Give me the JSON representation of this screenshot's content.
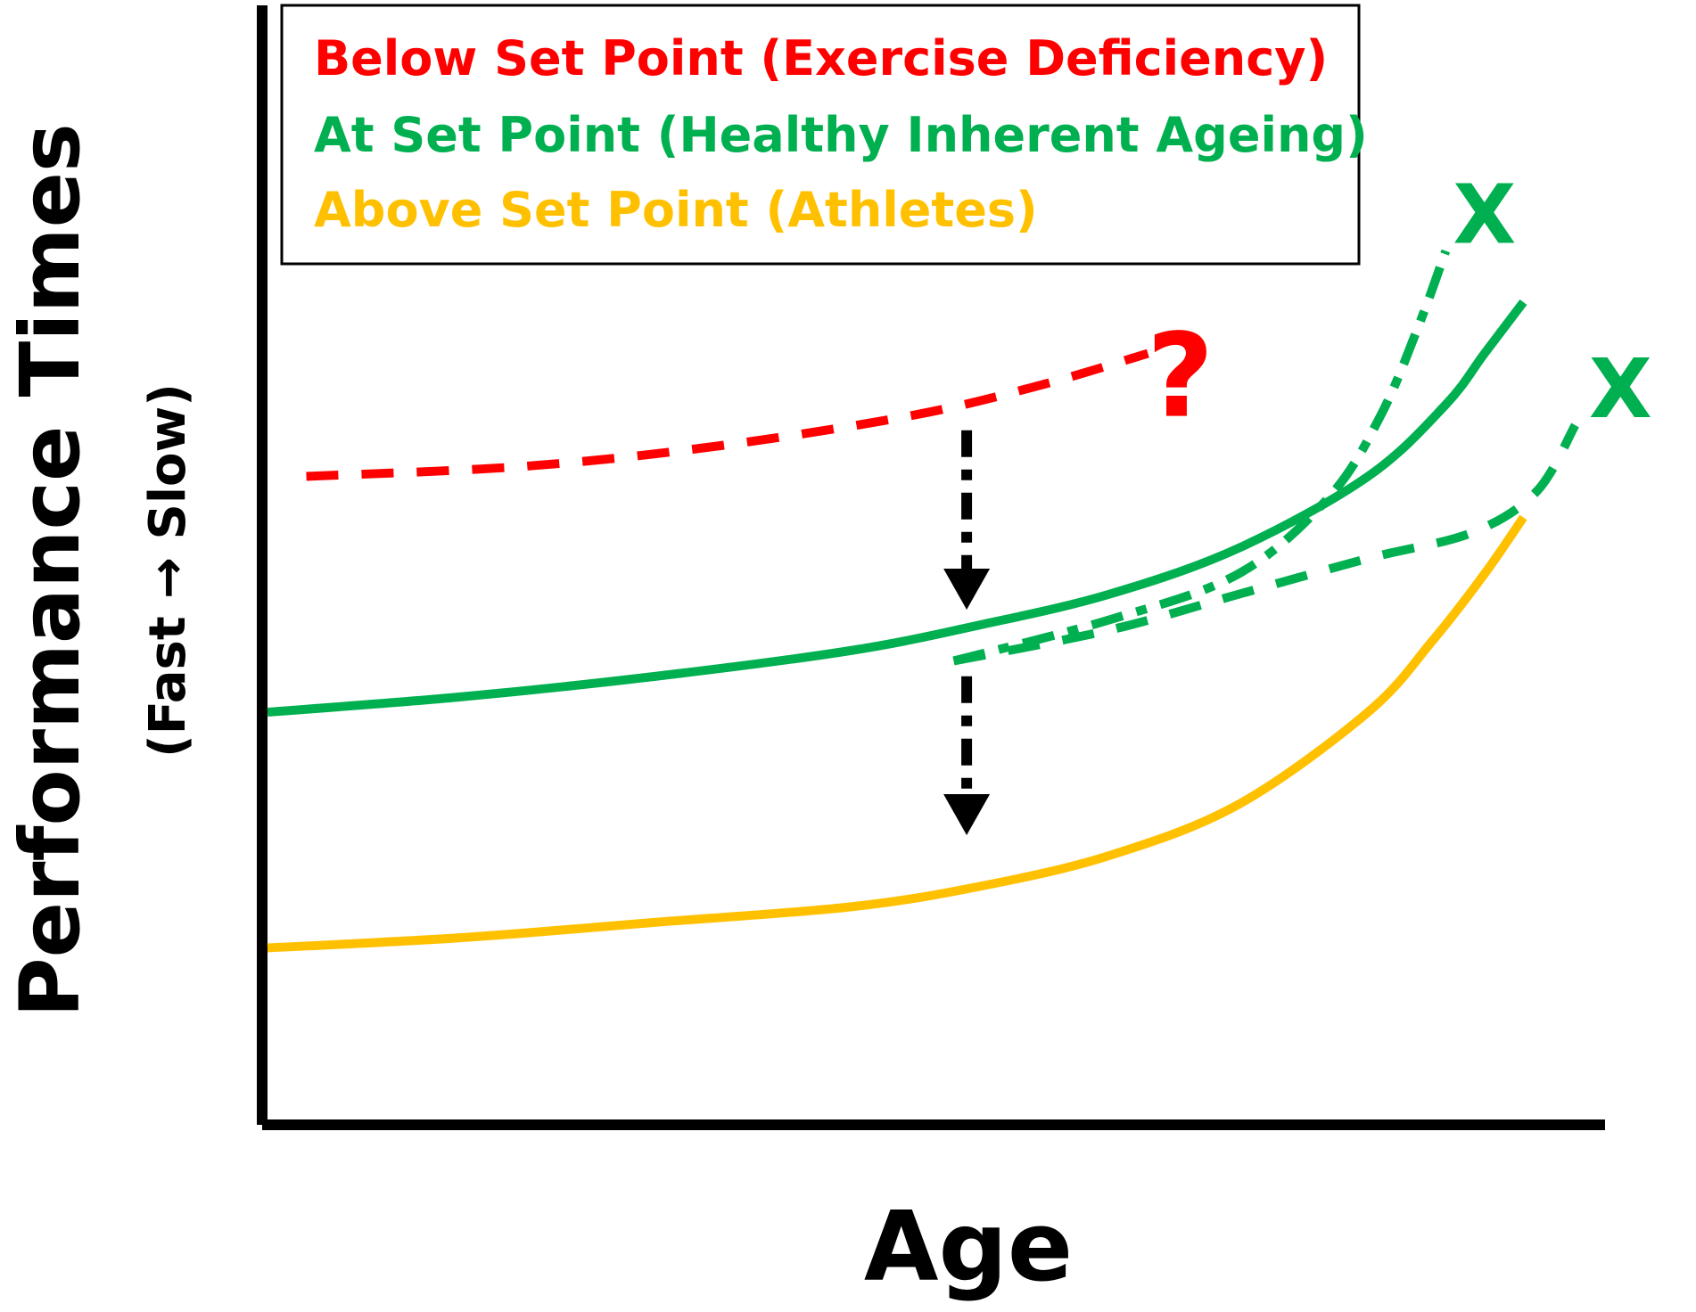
{
  "chart_data": {
    "type": "line",
    "title": "",
    "xlabel": "Age",
    "ylabel": "Performance Times",
    "ylabel_sub": "(Fast → Slow)",
    "x_ticks": [],
    "y_ticks": [],
    "xlim": [
      0,
      100
    ],
    "ylim": [
      0,
      100
    ],
    "grid": false,
    "legend": {
      "placement": "top-left",
      "entries": [
        {
          "label": "Below Set Point (Exercise Deficiency)",
          "color": "#ff0000"
        },
        {
          "label": "At Set Point (Healthy Inherent Ageing)",
          "color": "#00b050"
        },
        {
          "label": "Above Set Point (Athletes)",
          "color": "#ffc000"
        }
      ]
    },
    "series": [
      {
        "name": "Below Set Point (Exercise Deficiency)",
        "color": "#ff0000",
        "style": "dashed",
        "x": [
          3,
          20,
          35,
          50,
          60,
          68
        ],
        "y": [
          57,
          58,
          60,
          63,
          66,
          69
        ]
      },
      {
        "name": "At Set Point (Healthy Inherent Ageing)",
        "color": "#00b050",
        "style": "solid",
        "x": [
          0,
          15,
          30,
          45,
          55,
          65,
          75,
          85,
          91,
          94,
          97
        ],
        "y": [
          34,
          35.5,
          37.5,
          40,
          42.5,
          45.5,
          50,
          57,
          64,
          69,
          74
        ]
      },
      {
        "name": "",
        "color": "#00b050",
        "style": "dashdot",
        "x": [
          53,
          65,
          75,
          82,
          86,
          89,
          91
        ],
        "y": [
          39,
          43,
          47.5,
          55,
          63,
          72,
          79
        ]
      },
      {
        "name": "",
        "color": "#00b050",
        "style": "dashed",
        "x": [
          53,
          65,
          75,
          85,
          93,
          98,
          101
        ],
        "y": [
          39,
          42,
          45.5,
          49,
          51.5,
          55.5,
          62
        ]
      },
      {
        "name": "Above Set Point (Athletes)",
        "color": "#ffc000",
        "style": "solid",
        "x": [
          0,
          15,
          30,
          45,
          55,
          65,
          75,
          85,
          90,
          94,
          97
        ],
        "y": [
          11,
          12,
          13.5,
          15,
          17,
          20,
          25,
          34,
          41,
          47.5,
          53
        ]
      }
    ],
    "annotations": [
      {
        "text": "?",
        "color": "#ff0000",
        "x": 70.5,
        "y": 66
      },
      {
        "text": "X",
        "color": "#00b050",
        "x": 94,
        "y": 82
      },
      {
        "text": "X",
        "color": "#00b050",
        "x": 104.5,
        "y": 65
      }
    ],
    "arrows": [
      {
        "color": "#000000",
        "style": "dashdot",
        "x": 54,
        "from_y": 61.5,
        "to_y": 44
      },
      {
        "color": "#000000",
        "style": "dashdot",
        "x": 54,
        "from_y": 37.5,
        "to_y": 22
      }
    ]
  }
}
